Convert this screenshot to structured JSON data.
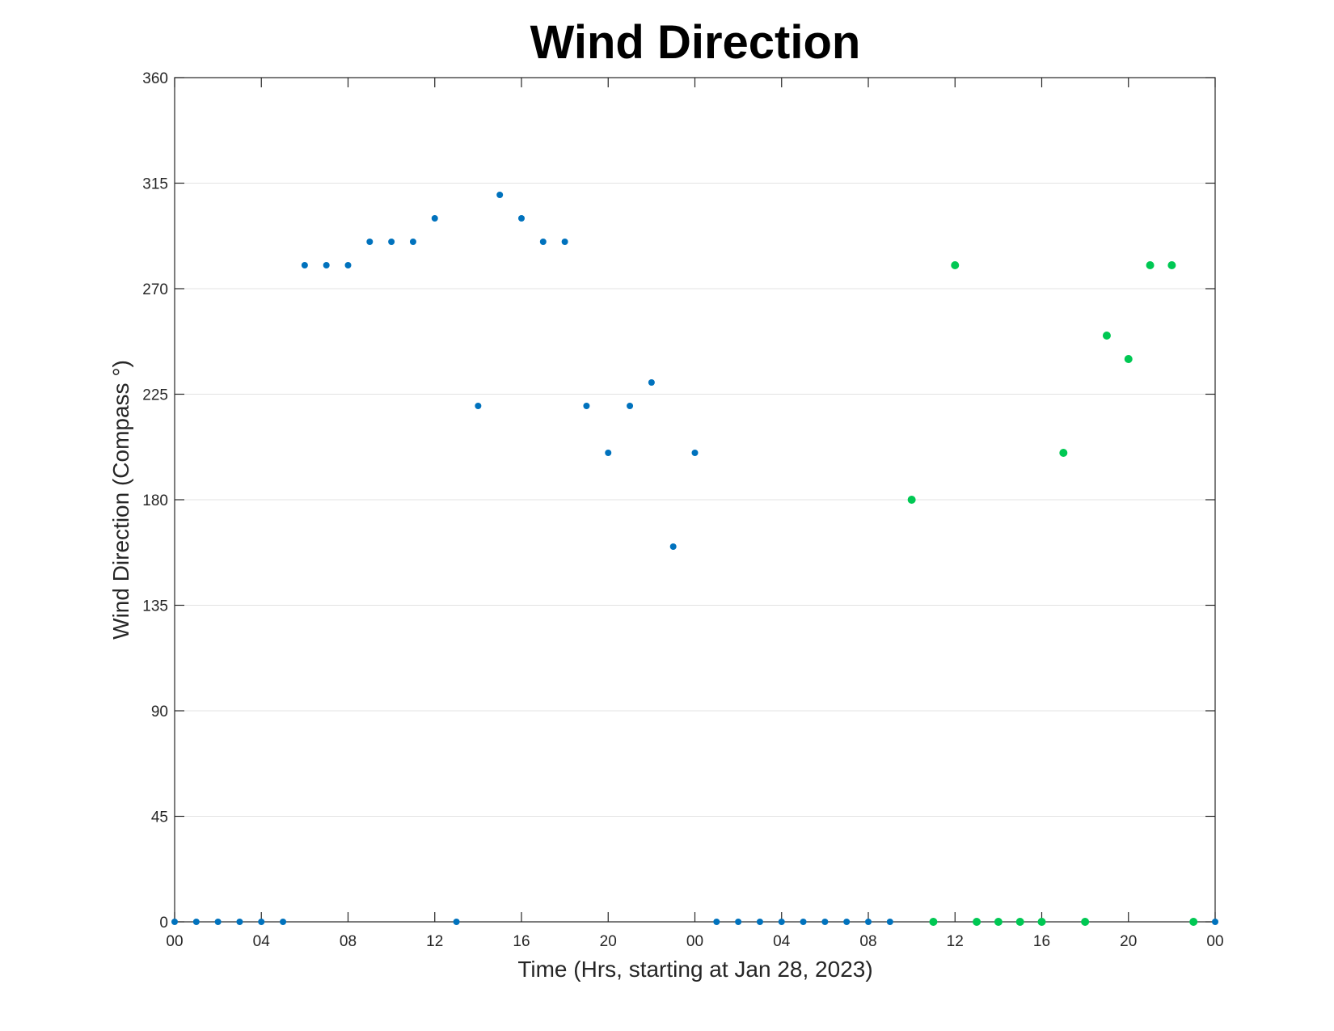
{
  "chart_data": {
    "type": "scatter",
    "title": "Wind Direction",
    "xlabel": "Time (Hrs, starting at Jan 28, 2023)",
    "ylabel": "Wind Direction (Compass °)",
    "ylim": [
      0,
      360
    ],
    "xlim": [
      0,
      48
    ],
    "grid": "horizontal",
    "x_ticks": [
      {
        "x": 0,
        "label": "00"
      },
      {
        "x": 4,
        "label": "04"
      },
      {
        "x": 8,
        "label": "08"
      },
      {
        "x": 12,
        "label": "12"
      },
      {
        "x": 16,
        "label": "16"
      },
      {
        "x": 20,
        "label": "20"
      },
      {
        "x": 24,
        "label": "00"
      },
      {
        "x": 28,
        "label": "04"
      },
      {
        "x": 32,
        "label": "08"
      },
      {
        "x": 36,
        "label": "12"
      },
      {
        "x": 40,
        "label": "16"
      },
      {
        "x": 44,
        "label": "20"
      },
      {
        "x": 48,
        "label": "00"
      }
    ],
    "y_ticks": [
      0,
      45,
      90,
      135,
      180,
      225,
      270,
      315,
      360
    ],
    "series": [
      {
        "color": "#0072BD",
        "marker_size": 4,
        "points": [
          [
            0,
            0
          ],
          [
            1,
            0
          ],
          [
            2,
            0
          ],
          [
            3,
            0
          ],
          [
            4,
            0
          ],
          [
            5,
            0
          ],
          [
            6,
            280
          ],
          [
            7,
            280
          ],
          [
            8,
            280
          ],
          [
            9,
            290
          ],
          [
            10,
            290
          ],
          [
            11,
            290
          ],
          [
            12,
            300
          ],
          [
            13,
            0
          ],
          [
            14,
            220
          ],
          [
            15,
            310
          ],
          [
            16,
            300
          ],
          [
            17,
            290
          ],
          [
            18,
            290
          ],
          [
            19,
            220
          ],
          [
            20,
            200
          ],
          [
            21,
            220
          ],
          [
            22,
            230
          ],
          [
            23,
            160
          ],
          [
            24,
            200
          ],
          [
            25,
            0
          ],
          [
            26,
            0
          ],
          [
            27,
            0
          ],
          [
            28,
            0
          ],
          [
            29,
            0
          ],
          [
            30,
            0
          ],
          [
            31,
            0
          ],
          [
            32,
            0
          ],
          [
            33,
            0
          ],
          [
            48,
            0
          ]
        ]
      },
      {
        "color": "#00C853",
        "marker_size": 5,
        "points": [
          [
            34,
            180
          ],
          [
            35,
            0
          ],
          [
            36,
            280
          ],
          [
            37,
            0
          ],
          [
            38,
            0
          ],
          [
            39,
            0
          ],
          [
            40,
            0
          ],
          [
            41,
            200
          ],
          [
            42,
            0
          ],
          [
            43,
            250
          ],
          [
            44,
            240
          ],
          [
            45,
            280
          ],
          [
            46,
            280
          ],
          [
            47,
            0
          ]
        ]
      }
    ]
  }
}
